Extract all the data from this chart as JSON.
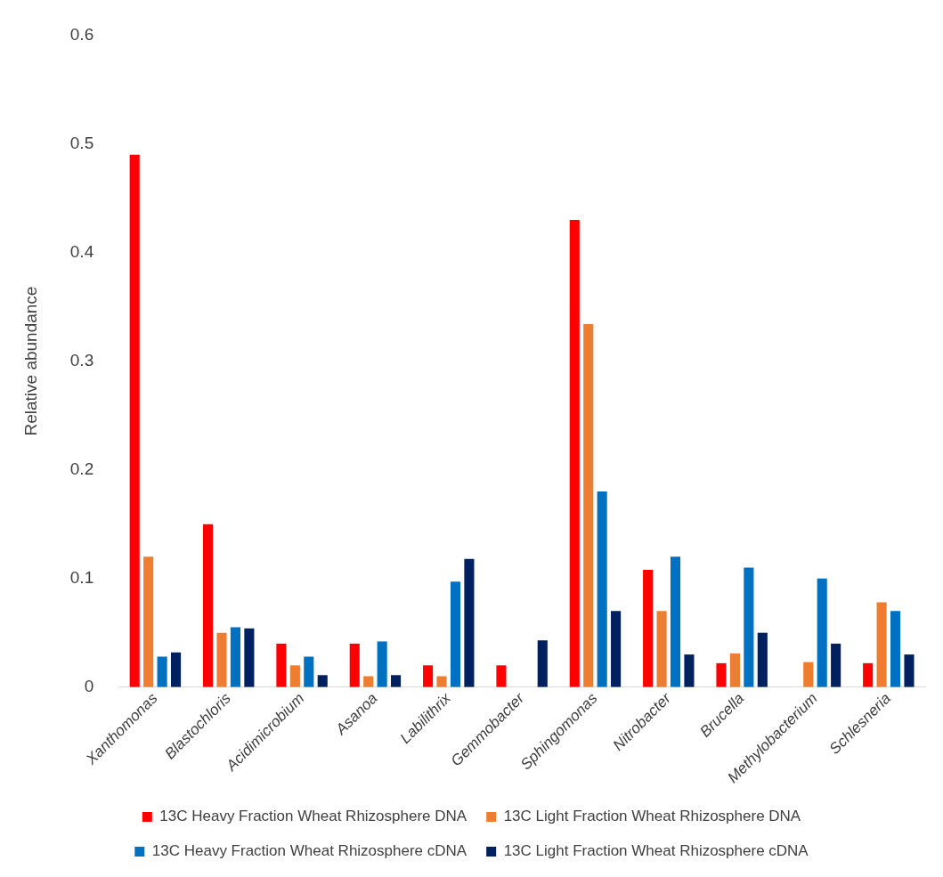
{
  "chart_data": {
    "type": "bar",
    "ylabel": "Relative abundance",
    "categories": [
      "Xanthomonas",
      "Blastochloris",
      "Acidimicrobium",
      "Asanoa",
      "Labilithrix",
      "Gemmobacter",
      "Sphingomonas",
      "Nitrobacter",
      "Brucella",
      "Methylobacterium",
      "Schlesneria"
    ],
    "series": [
      {
        "name": "13C Heavy Fraction Wheat Rhizosphere DNA",
        "color": "#ff0000",
        "values": [
          0.49,
          0.15,
          0.04,
          0.04,
          0.02,
          0.02,
          0.43,
          0.108,
          0.022,
          null,
          0.022
        ]
      },
      {
        "name": "13C Light Fraction Wheat Rhizosphere DNA",
        "color": "#ed7d31",
        "values": [
          0.12,
          0.05,
          0.02,
          0.01,
          0.01,
          null,
          0.334,
          0.07,
          0.031,
          0.023,
          0.078
        ]
      },
      {
        "name": "13C Heavy Fraction Wheat Rhizosphere cDNA",
        "color": "#0070c0",
        "values": [
          0.028,
          0.055,
          0.028,
          0.042,
          0.097,
          null,
          0.18,
          0.12,
          0.11,
          0.1,
          0.07
        ]
      },
      {
        "name": "13C Light Fraction Wheat Rhizosphere cDNA",
        "color": "#002060",
        "values": [
          0.032,
          0.054,
          0.011,
          0.011,
          0.118,
          0.043,
          0.07,
          0.03,
          0.05,
          0.04,
          0.03
        ]
      }
    ],
    "ylim": [
      0,
      0.6
    ],
    "yticks": [
      0,
      0.1,
      0.2,
      0.3,
      0.4,
      0.5,
      0.6
    ],
    "grid": false,
    "legend": "bottom"
  }
}
